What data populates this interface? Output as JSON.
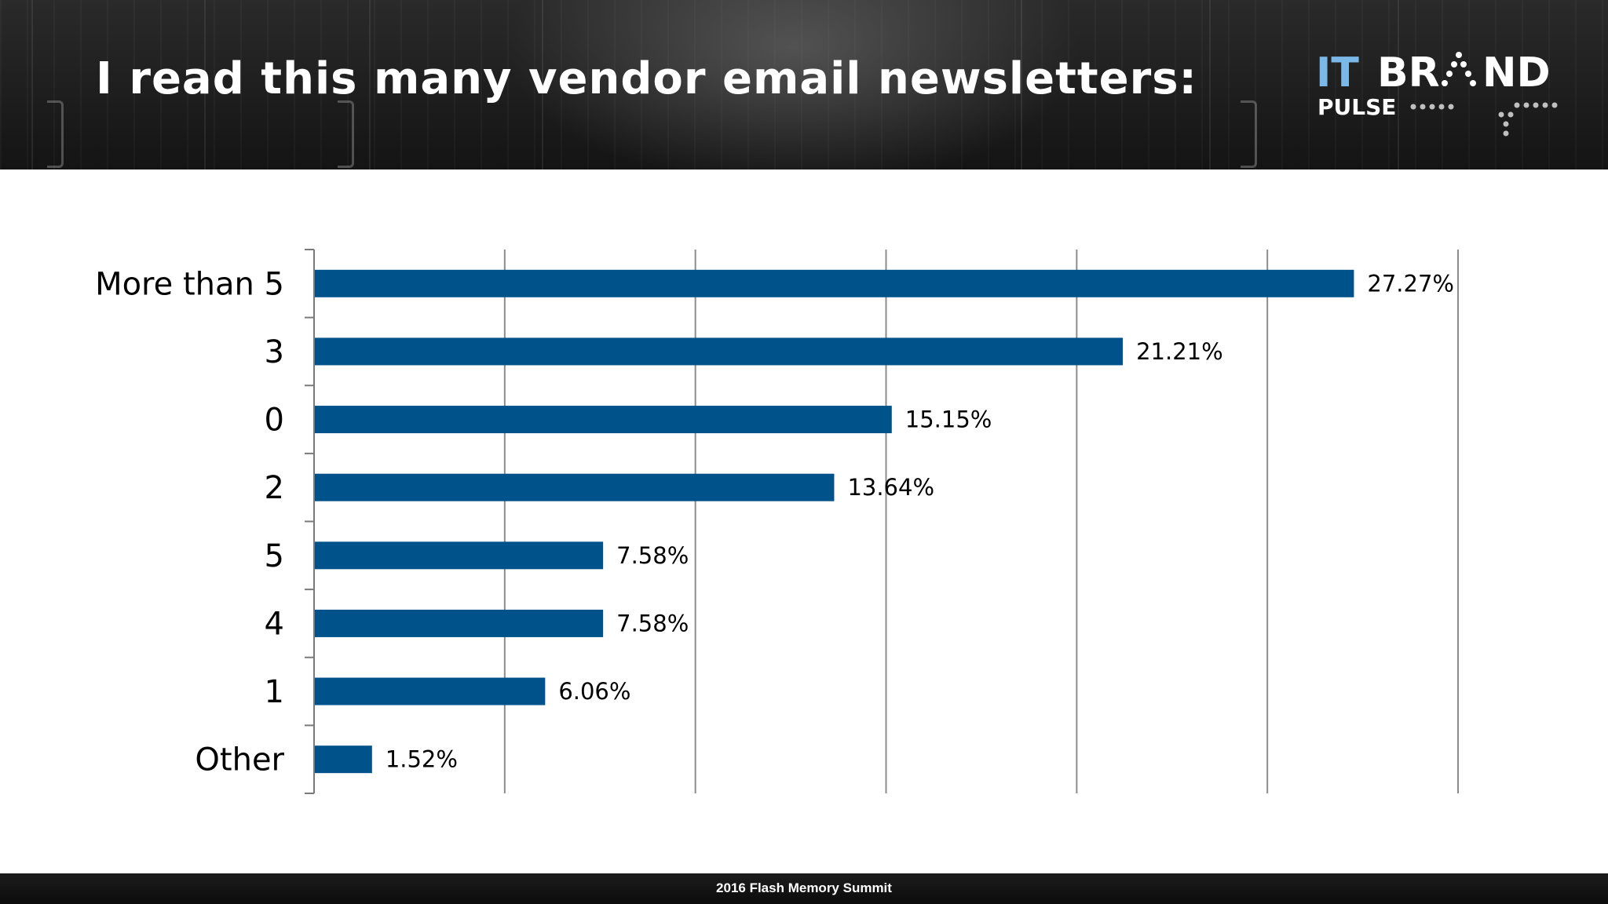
{
  "slide": {
    "title": "I read this many vendor email newsletters:",
    "footer": "2016 Flash Memory Summit"
  },
  "logo": {
    "line1_a": "IT",
    "line1_b": "BR",
    "line1_c": "ND",
    "line2": "PULSE",
    "colors": {
      "accent": "#7ab8e8",
      "white": "#ffffff"
    }
  },
  "colors": {
    "bar": "#00538a",
    "grid": "#8c8c8c",
    "axis": "#7a7a7a"
  },
  "chart_data": {
    "type": "bar",
    "orientation": "horizontal",
    "categories": [
      "More than 5",
      "3",
      "0",
      "2",
      "5",
      "4",
      "1",
      "Other"
    ],
    "values": [
      27.27,
      21.21,
      15.15,
      13.64,
      7.58,
      7.58,
      6.06,
      1.52
    ],
    "data_labels": [
      "27.27%",
      "21.21%",
      "15.15%",
      "13.64%",
      "7.58%",
      "7.58%",
      "6.06%",
      "1.52%"
    ],
    "xlim": [
      0,
      30
    ],
    "x_gridlines": [
      5,
      10,
      15,
      20,
      25,
      30
    ],
    "grid": true,
    "legend": "none"
  }
}
